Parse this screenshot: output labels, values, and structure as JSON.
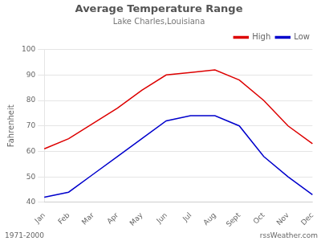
{
  "chart_data": {
    "type": "line",
    "title": "Average Temperature Range",
    "subtitle": "Lake Charles,Louisiana",
    "ylabel": "Fahrenheit",
    "categories": [
      "Jan",
      "Feb",
      "Mar",
      "Apr",
      "May",
      "Jun",
      "Jul",
      "Aug",
      "Sept",
      "Oct",
      "Nov",
      "Dec"
    ],
    "series": [
      {
        "name": "High",
        "color": "#dd0000",
        "values": [
          61,
          65,
          71,
          77,
          84,
          90,
          91,
          92,
          88,
          80,
          70,
          63
        ]
      },
      {
        "name": "Low",
        "color": "#0000cc",
        "values": [
          42,
          44,
          51,
          58,
          65,
          72,
          74,
          74,
          70,
          58,
          50,
          43
        ]
      }
    ],
    "ylim": [
      40,
      100
    ],
    "yticks": [
      40,
      50,
      60,
      70,
      80,
      90,
      100
    ],
    "grid": true,
    "legend": "upper right",
    "annotations": [
      "1971-2000",
      "rssWeather.com"
    ]
  }
}
